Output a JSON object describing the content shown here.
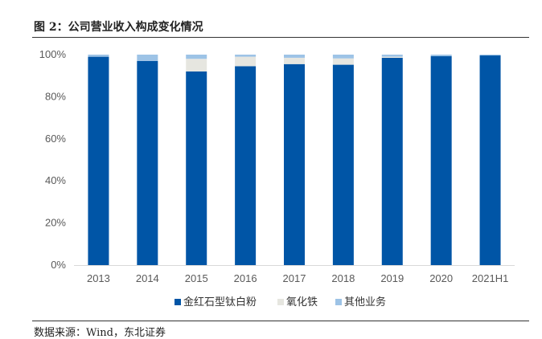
{
  "figure": {
    "title": "图 2：公司营业收入构成变化情况",
    "source": "数据来源：Wind，东北证券"
  },
  "chart_data": {
    "type": "bar",
    "stacked": true,
    "categories": [
      "2013",
      "2014",
      "2015",
      "2016",
      "2017",
      "2018",
      "2019",
      "2020",
      "2021H1"
    ],
    "series": [
      {
        "name": "金红石型钛白粉",
        "color": "#0055A6",
        "values": [
          99,
          97,
          92,
          94.5,
          95.5,
          95.2,
          98.5,
          99.3,
          99.6
        ]
      },
      {
        "name": "氧化铁",
        "color": "#E6E6E0",
        "values": [
          0,
          0,
          6,
          4.5,
          3,
          3,
          0.5,
          0,
          0
        ]
      },
      {
        "name": "其他业务",
        "color": "#9DC3E6",
        "values": [
          1,
          3,
          2,
          1,
          1.5,
          1.8,
          1,
          0.7,
          0.4
        ]
      }
    ],
    "yticks": [
      "0%",
      "20%",
      "40%",
      "60%",
      "80%",
      "100%"
    ],
    "ylim": [
      0,
      100
    ],
    "grid": false,
    "legend_position": "bottom"
  }
}
